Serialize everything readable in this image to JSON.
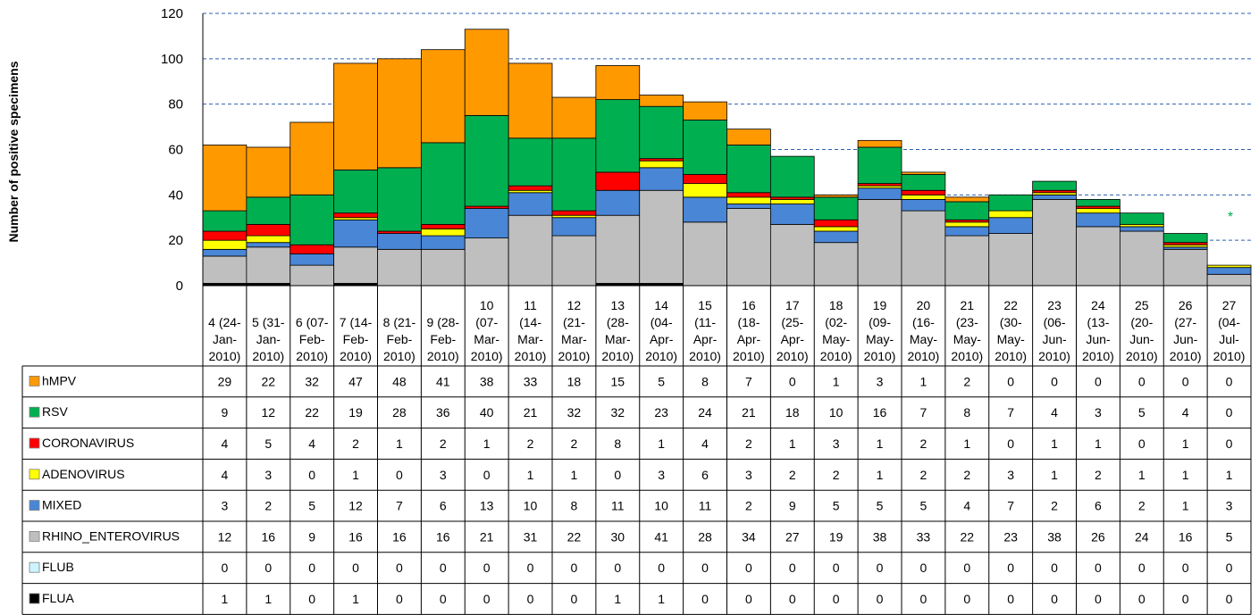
{
  "chart_data": {
    "type": "bar",
    "stacked": true,
    "ylabel": "Number of positive specimens",
    "ylim": [
      0,
      120
    ],
    "yticks": [
      "0",
      "20",
      "40",
      "60",
      "80",
      "100",
      "120"
    ],
    "grid": true,
    "annotation": "*",
    "categories": [
      [
        "4 (24-",
        "Jan-",
        "2010)"
      ],
      [
        "5 (31-",
        "Jan-",
        "2010)"
      ],
      [
        "6 (07-",
        "Feb-",
        "2010)"
      ],
      [
        "7 (14-",
        "Feb-",
        "2010)"
      ],
      [
        "8 (21-",
        "Feb-",
        "2010)"
      ],
      [
        "9 (28-",
        "Feb-",
        "2010)"
      ],
      [
        "10",
        "(07-",
        "Mar-",
        "2010)"
      ],
      [
        "11",
        "(14-",
        "Mar-",
        "2010)"
      ],
      [
        "12",
        "(21-",
        "Mar-",
        "2010)"
      ],
      [
        "13",
        "(28-",
        "Mar-",
        "2010)"
      ],
      [
        "14",
        "(04-",
        "Apr-",
        "2010)"
      ],
      [
        "15",
        "(11-",
        "Apr-",
        "2010)"
      ],
      [
        "16",
        "(18-",
        "Apr-",
        "2010)"
      ],
      [
        "17",
        "(25-",
        "Apr-",
        "2010)"
      ],
      [
        "18",
        "(02-",
        "May-",
        "2010)"
      ],
      [
        "19",
        "(09-",
        "May-",
        "2010)"
      ],
      [
        "20",
        "(16-",
        "May-",
        "2010)"
      ],
      [
        "21",
        "(23-",
        "May-",
        "2010)"
      ],
      [
        "22",
        "(30-",
        "May-",
        "2010)"
      ],
      [
        "23",
        "(06-",
        "Jun-",
        "2010)"
      ],
      [
        "24",
        "(13-",
        "Jun-",
        "2010)"
      ],
      [
        "25",
        "(20-",
        "Jun-",
        "2010)"
      ],
      [
        "26",
        "(27-",
        "Jun-",
        "2010)"
      ],
      [
        "27",
        "(04-",
        "Jul-",
        "2010)"
      ]
    ],
    "stack_order": [
      "FLUA",
      "FLUB",
      "RHINO_ENTEROVIRUS",
      "MIXED",
      "ADENOVIRUS",
      "CORONAVIRUS",
      "RSV",
      "hMPV"
    ],
    "series": [
      {
        "name": "hMPV",
        "color": "#ff9900",
        "values": [
          29,
          22,
          32,
          47,
          48,
          41,
          38,
          33,
          18,
          15,
          5,
          8,
          7,
          0,
          1,
          3,
          1,
          2,
          0,
          0,
          0,
          0,
          0,
          0
        ]
      },
      {
        "name": "RSV",
        "color": "#00b050",
        "values": [
          9,
          12,
          22,
          19,
          28,
          36,
          40,
          21,
          32,
          32,
          23,
          24,
          21,
          18,
          10,
          16,
          7,
          8,
          7,
          4,
          3,
          5,
          4,
          0
        ]
      },
      {
        "name": "CORONAVIRUS",
        "color": "#ff0000",
        "values": [
          4,
          5,
          4,
          2,
          1,
          2,
          1,
          2,
          2,
          8,
          1,
          4,
          2,
          1,
          3,
          1,
          2,
          1,
          0,
          1,
          1,
          0,
          1,
          0
        ]
      },
      {
        "name": "ADENOVIRUS",
        "color": "#ffff00",
        "values": [
          4,
          3,
          0,
          1,
          0,
          3,
          0,
          1,
          1,
          0,
          3,
          6,
          3,
          2,
          2,
          1,
          2,
          2,
          3,
          1,
          2,
          1,
          1,
          1
        ]
      },
      {
        "name": "MIXED",
        "color": "#4a86d6",
        "values": [
          3,
          2,
          5,
          12,
          7,
          6,
          13,
          10,
          8,
          11,
          10,
          11,
          2,
          9,
          5,
          5,
          5,
          4,
          7,
          2,
          6,
          2,
          1,
          3
        ]
      },
      {
        "name": "RHINO_ENTEROVIRUS",
        "color": "#bfbfbf",
        "values": [
          12,
          16,
          9,
          16,
          16,
          16,
          21,
          31,
          22,
          30,
          41,
          28,
          34,
          27,
          19,
          38,
          33,
          22,
          23,
          38,
          26,
          24,
          16,
          5
        ]
      },
      {
        "name": "FLUB",
        "color": "#ccf5ff",
        "values": [
          0,
          0,
          0,
          0,
          0,
          0,
          0,
          0,
          0,
          0,
          0,
          0,
          0,
          0,
          0,
          0,
          0,
          0,
          0,
          0,
          0,
          0,
          0,
          0
        ]
      },
      {
        "name": "FLUA",
        "color": "#000000",
        "values": [
          1,
          1,
          0,
          1,
          0,
          0,
          0,
          0,
          0,
          1,
          1,
          0,
          0,
          0,
          0,
          0,
          0,
          0,
          0,
          0,
          0,
          0,
          0,
          0
        ]
      }
    ]
  }
}
